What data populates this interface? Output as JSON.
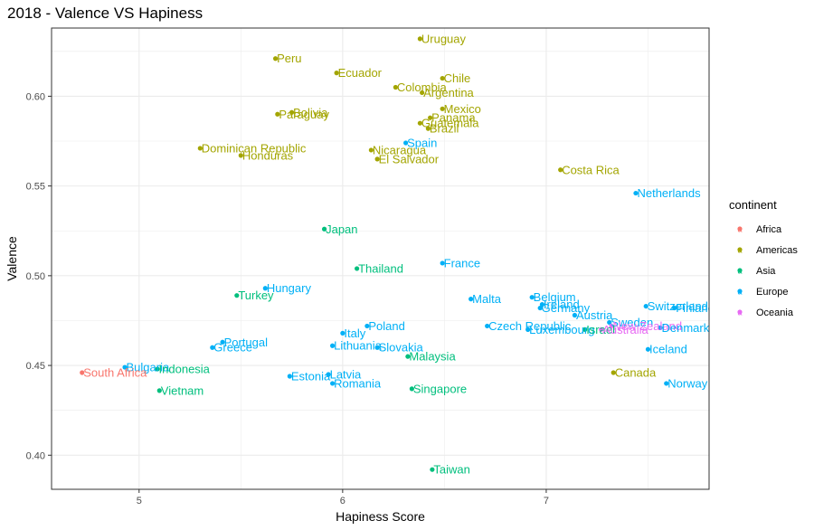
{
  "chart_data": {
    "type": "scatter",
    "title": "2018 - Valence VS Hapiness",
    "xlabel": "Hapiness Score",
    "ylabel": "Valence",
    "xlim": [
      4.57,
      7.8
    ],
    "ylim": [
      0.381,
      0.638
    ],
    "x_ticks": [
      5,
      6,
      7
    ],
    "x_tick_labels": [
      "5",
      "6",
      "7"
    ],
    "y_ticks": [
      0.4,
      0.45,
      0.5,
      0.55,
      0.6
    ],
    "y_tick_labels": [
      "0.40",
      "0.45",
      "0.50",
      "0.55",
      "0.60"
    ],
    "grid": true,
    "legend": {
      "title": "continent",
      "position": "right",
      "entries": [
        {
          "name": "Africa",
          "color": "#F8766D"
        },
        {
          "name": "Americas",
          "color": "#A3A500"
        },
        {
          "name": "Asia",
          "color": "#00BF7D"
        },
        {
          "name": "Europe",
          "color": "#00B0F6"
        },
        {
          "name": "Oceania",
          "color": "#E76BF3"
        }
      ]
    },
    "points": [
      {
        "label": "Uruguay",
        "x": 6.38,
        "y": 0.632,
        "continent": "Americas"
      },
      {
        "label": "Peru",
        "x": 5.67,
        "y": 0.621,
        "continent": "Americas"
      },
      {
        "label": "Ecuador",
        "x": 5.97,
        "y": 0.613,
        "continent": "Americas"
      },
      {
        "label": "Chile",
        "x": 6.49,
        "y": 0.61,
        "continent": "Americas"
      },
      {
        "label": "Colombia",
        "x": 6.26,
        "y": 0.605,
        "continent": "Americas"
      },
      {
        "label": "Argentina",
        "x": 6.39,
        "y": 0.602,
        "continent": "Americas"
      },
      {
        "label": "Mexico",
        "x": 6.49,
        "y": 0.593,
        "continent": "Americas"
      },
      {
        "label": "Paraguay",
        "x": 5.68,
        "y": 0.59,
        "continent": "Americas"
      },
      {
        "label": "Bolivia",
        "x": 5.75,
        "y": 0.591,
        "continent": "Americas"
      },
      {
        "label": "Panama",
        "x": 6.43,
        "y": 0.588,
        "continent": "Americas"
      },
      {
        "label": "Guatemala",
        "x": 6.38,
        "y": 0.585,
        "continent": "Americas"
      },
      {
        "label": "Brazil",
        "x": 6.42,
        "y": 0.582,
        "continent": "Americas"
      },
      {
        "label": "Spain",
        "x": 6.31,
        "y": 0.574,
        "continent": "Europe"
      },
      {
        "label": "Dominican Republic",
        "x": 5.3,
        "y": 0.571,
        "continent": "Americas"
      },
      {
        "label": "Nicaragua",
        "x": 6.14,
        "y": 0.57,
        "continent": "Americas"
      },
      {
        "label": "Honduras",
        "x": 5.5,
        "y": 0.567,
        "continent": "Americas"
      },
      {
        "label": "El Salvador",
        "x": 6.17,
        "y": 0.565,
        "continent": "Americas"
      },
      {
        "label": "Costa Rica",
        "x": 7.07,
        "y": 0.559,
        "continent": "Americas"
      },
      {
        "label": "Netherlands",
        "x": 7.44,
        "y": 0.546,
        "continent": "Europe"
      },
      {
        "label": "Japan",
        "x": 5.91,
        "y": 0.526,
        "continent": "Asia"
      },
      {
        "label": "France",
        "x": 6.49,
        "y": 0.507,
        "continent": "Europe"
      },
      {
        "label": "Thailand",
        "x": 6.07,
        "y": 0.504,
        "continent": "Asia"
      },
      {
        "label": "Hungary",
        "x": 5.62,
        "y": 0.493,
        "continent": "Europe"
      },
      {
        "label": "Turkey",
        "x": 5.48,
        "y": 0.489,
        "continent": "Asia"
      },
      {
        "label": "Malta",
        "x": 6.63,
        "y": 0.487,
        "continent": "Europe"
      },
      {
        "label": "Belgium",
        "x": 6.93,
        "y": 0.488,
        "continent": "Europe"
      },
      {
        "label": "Ireland",
        "x": 6.98,
        "y": 0.484,
        "continent": "Europe"
      },
      {
        "label": "Germany",
        "x": 6.97,
        "y": 0.482,
        "continent": "Europe"
      },
      {
        "label": "Switzerland",
        "x": 7.49,
        "y": 0.483,
        "continent": "Europe"
      },
      {
        "label": "Finland",
        "x": 7.63,
        "y": 0.482,
        "continent": "Europe"
      },
      {
        "label": "Austria",
        "x": 7.14,
        "y": 0.478,
        "continent": "Europe"
      },
      {
        "label": "Sweden",
        "x": 7.31,
        "y": 0.474,
        "continent": "Europe"
      },
      {
        "label": "Poland",
        "x": 6.12,
        "y": 0.472,
        "continent": "Europe"
      },
      {
        "label": "Czech Republic",
        "x": 6.71,
        "y": 0.472,
        "continent": "Europe"
      },
      {
        "label": "New Zealand",
        "x": 7.32,
        "y": 0.472,
        "continent": "Oceania"
      },
      {
        "label": "Denmark",
        "x": 7.56,
        "y": 0.471,
        "continent": "Europe"
      },
      {
        "label": "Luxembourg",
        "x": 6.91,
        "y": 0.47,
        "continent": "Europe"
      },
      {
        "label": "Israel",
        "x": 7.19,
        "y": 0.47,
        "continent": "Asia"
      },
      {
        "label": "Norway",
        "x": 7.59,
        "y": 0.44,
        "continent": "Europe"
      },
      {
        "label": "Australia",
        "x": 7.27,
        "y": 0.47,
        "continent": "Oceania"
      },
      {
        "label": "Italy",
        "x": 6.0,
        "y": 0.468,
        "continent": "Europe"
      },
      {
        "label": "Portugal",
        "x": 5.41,
        "y": 0.463,
        "continent": "Europe"
      },
      {
        "label": "Lithuania",
        "x": 5.95,
        "y": 0.461,
        "continent": "Europe"
      },
      {
        "label": "Slovakia",
        "x": 6.17,
        "y": 0.46,
        "continent": "Europe"
      },
      {
        "label": "Greece",
        "x": 5.36,
        "y": 0.46,
        "continent": "Europe"
      },
      {
        "label": "Iceland",
        "x": 7.5,
        "y": 0.459,
        "continent": "Europe"
      },
      {
        "label": "Malaysia",
        "x": 6.32,
        "y": 0.455,
        "continent": "Asia"
      },
      {
        "label": "Bulgaria",
        "x": 4.93,
        "y": 0.449,
        "continent": "Europe"
      },
      {
        "label": "Indonesia",
        "x": 5.09,
        "y": 0.448,
        "continent": "Asia"
      },
      {
        "label": "South Africa",
        "x": 4.72,
        "y": 0.446,
        "continent": "Africa"
      },
      {
        "label": "Canada",
        "x": 7.33,
        "y": 0.446,
        "continent": "Americas"
      },
      {
        "label": "Latvia",
        "x": 5.93,
        "y": 0.445,
        "continent": "Europe"
      },
      {
        "label": "Estonia",
        "x": 5.74,
        "y": 0.444,
        "continent": "Europe"
      },
      {
        "label": "Romania",
        "x": 5.95,
        "y": 0.44,
        "continent": "Europe"
      },
      {
        "label": "Singapore",
        "x": 6.34,
        "y": 0.437,
        "continent": "Asia"
      },
      {
        "label": "Vietnam",
        "x": 5.1,
        "y": 0.436,
        "continent": "Asia"
      },
      {
        "label": "Taiwan",
        "x": 6.44,
        "y": 0.392,
        "continent": "Asia"
      }
    ]
  }
}
